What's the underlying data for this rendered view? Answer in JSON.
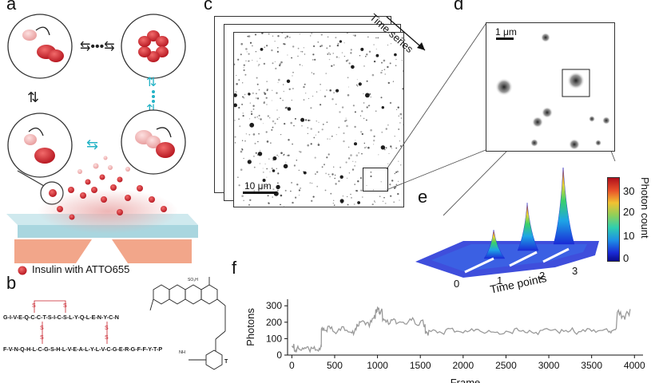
{
  "panels": {
    "a": "a",
    "b": "b",
    "c": "c",
    "d": "d",
    "e": "e",
    "f": "f"
  },
  "panel_a": {
    "legend": "Insulin with ATTO655",
    "colors": {
      "red": "#c8202a",
      "pink": "#f2b3b3",
      "cyan": "#24b3c6",
      "glass": "#bfe3ea",
      "substrate": "#f2a68a"
    }
  },
  "panel_b": {
    "chain_a": "G-I-V-E-Q-C-C-T-S-I-C-S-L-Y-Q-L-E-N-Y-C-N",
    "chain_b": "F-V-N-Q-H-L-C-G-S-H-L-V-E-A-L-Y-L-V-C-G-E-R-G-F-F-Y-T-P",
    "sulfur": "S",
    "nh": "NH",
    "terminal": "T",
    "substituent": "SO₃H"
  },
  "panel_c": {
    "scale_label": "10 μm",
    "time_series_label": "Time series"
  },
  "panel_d": {
    "scale_label": "1 μm"
  },
  "panel_e": {
    "xlabel": "Time points",
    "ticks": [
      "0",
      "1",
      "2",
      "3"
    ],
    "colorbar_label": "Photon count",
    "colorbar_ticks": [
      "30",
      "20",
      "10",
      "0"
    ],
    "peak_photons": [
      0,
      12,
      20,
      33
    ]
  },
  "chart_data": {
    "type": "line",
    "xlabel": "Frame",
    "ylabel": "Photons",
    "xlim": [
      -50,
      4100
    ],
    "ylim": [
      0,
      340
    ],
    "xticks": [
      0,
      500,
      1000,
      1500,
      2000,
      2500,
      3000,
      3500,
      4000
    ],
    "yticks": [
      0,
      100,
      200,
      300
    ],
    "line_color": "#9a9a9a",
    "series": [
      {
        "x": [
          0,
          30,
          60,
          100,
          150,
          200,
          250,
          300,
          340,
          345,
          380,
          420,
          480,
          550,
          620,
          700,
          740,
          760,
          800,
          860,
          920,
          960,
          980,
          1000,
          1020,
          1040,
          1060,
          1100,
          1160,
          1220,
          1300,
          1380,
          1440,
          1500,
          1540,
          1560,
          1600,
          1700,
          1800,
          1900,
          2000,
          2100,
          2200,
          2300,
          2400,
          2500,
          2600,
          2700,
          2800,
          2900,
          3000,
          3100,
          3200,
          3300,
          3400,
          3500,
          3600,
          3700,
          3750,
          3800,
          3850,
          3900,
          3950
        ],
        "y": [
          55,
          25,
          40,
          30,
          45,
          35,
          40,
          30,
          55,
          160,
          150,
          175,
          145,
          160,
          150,
          135,
          160,
          190,
          200,
          185,
          210,
          230,
          275,
          290,
          250,
          270,
          210,
          200,
          215,
          190,
          200,
          220,
          190,
          200,
          180,
          130,
          150,
          135,
          155,
          140,
          135,
          160,
          145,
          150,
          140,
          145,
          160,
          150,
          140,
          150,
          155,
          145,
          150,
          140,
          155,
          145,
          150,
          140,
          150,
          260,
          225,
          250,
          280
        ]
      }
    ]
  }
}
